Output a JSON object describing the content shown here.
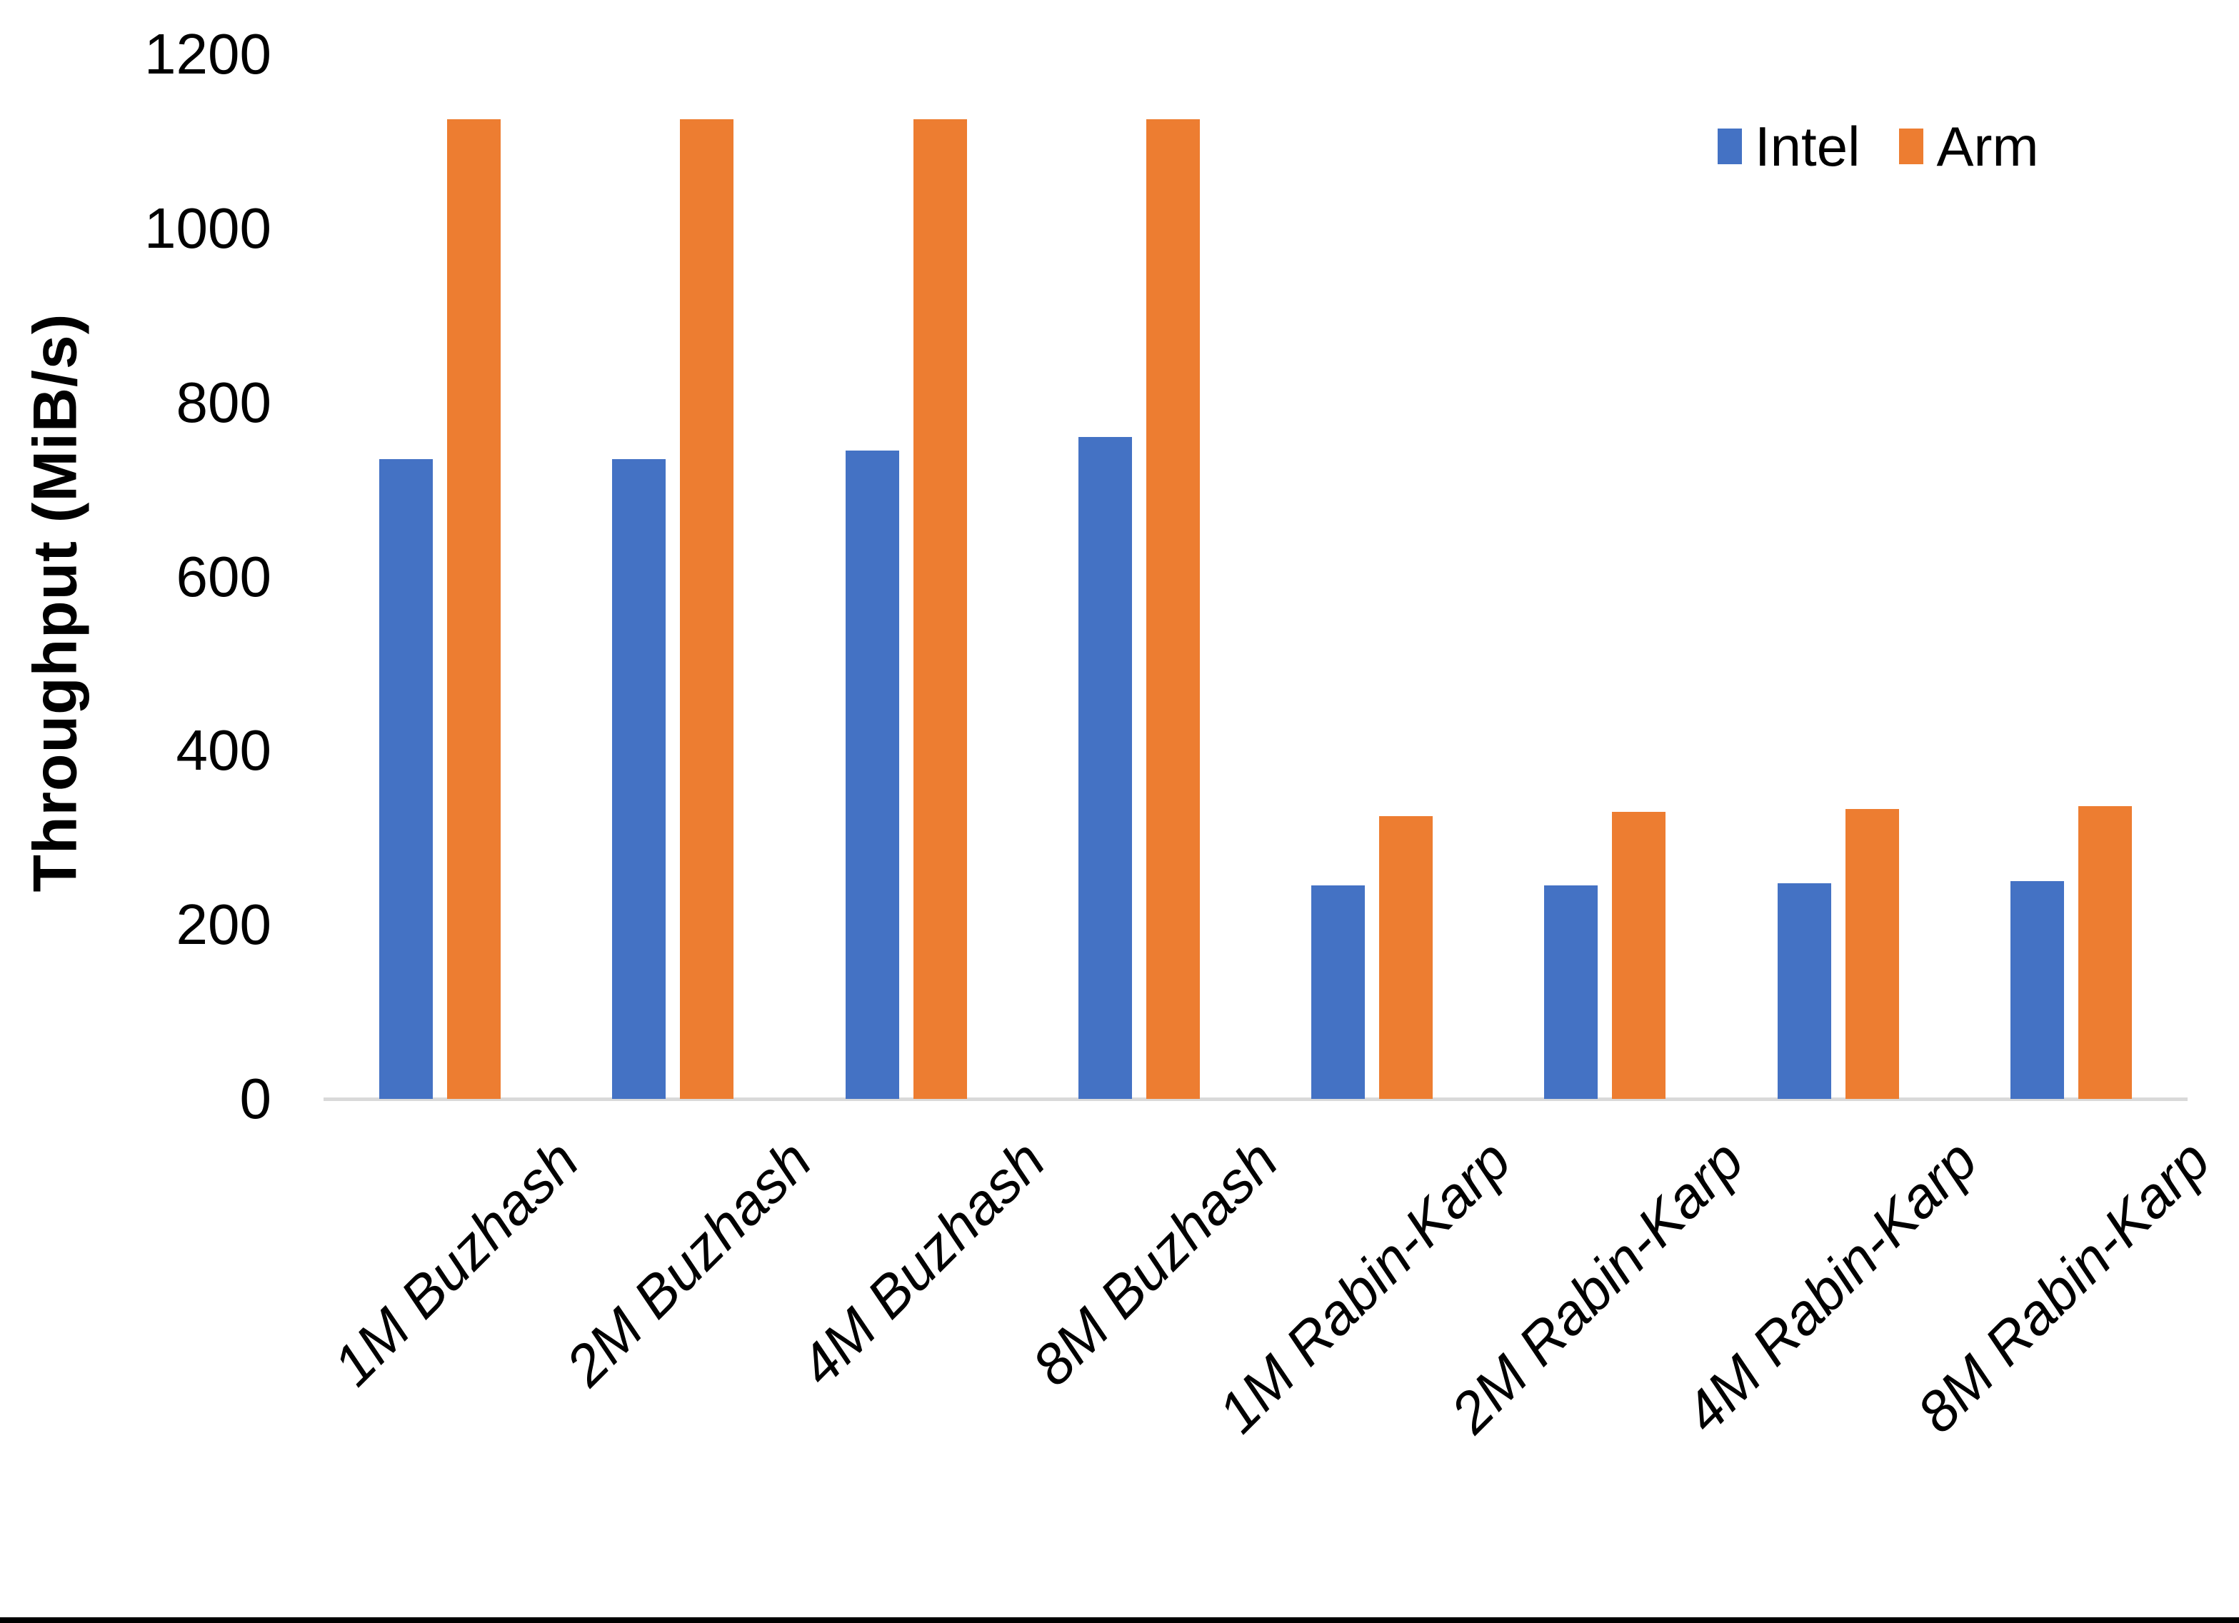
{
  "chart_data": {
    "type": "bar",
    "categories": [
      "1M Buzhash",
      "2M Buzhash",
      "4M Buzhash",
      "8M Buzhash",
      "1M Rabin-Karp",
      "2M Rabin-Karp",
      "4M Rabin-Karp",
      "8M Rabin-Karp"
    ],
    "series": [
      {
        "name": "Intel",
        "color": "#4472C4",
        "values": [
          735,
          735,
          745,
          760,
          245,
          245,
          248,
          250
        ]
      },
      {
        "name": "Arm",
        "color": "#ED7D31",
        "values": [
          1125,
          1125,
          1125,
          1125,
          325,
          330,
          333,
          336
        ]
      }
    ],
    "title": "",
    "xlabel": "",
    "ylabel": "Throughput (MiB/s)",
    "ylim": [
      0,
      1200
    ],
    "ytick_step": 200,
    "yticks": [
      "0",
      "200",
      "400",
      "600",
      "800",
      "1000",
      "1200"
    ],
    "grid": false,
    "legend_position": "top-right"
  },
  "legend": {
    "items": [
      {
        "label": "Intel",
        "color": "#4472C4"
      },
      {
        "label": "Arm",
        "color": "#ED7D31"
      }
    ]
  },
  "colors": {
    "background": "#FFFFFF",
    "axis_line": "#D9D9D9",
    "text": "#000000",
    "intel": "#4472C4",
    "arm": "#ED7D31",
    "bottom_edge": "#000000"
  }
}
